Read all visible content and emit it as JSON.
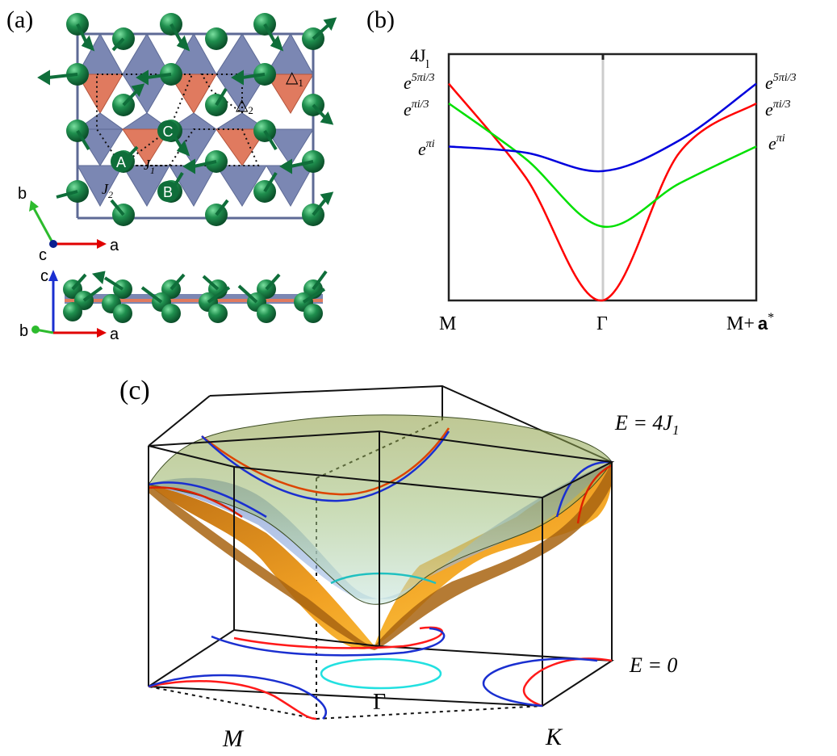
{
  "panel_a": {
    "label": "(a)",
    "site_a": "A",
    "site_b": "B",
    "site_c": "C",
    "j1_main": "J",
    "j1_sub": "1",
    "j2_main": "J",
    "j2_sub": "2",
    "tri1_main": "△",
    "tri1_sub": "1",
    "tri2_main": "△",
    "tri2_sub": "2",
    "axis_top": {
      "b": "b",
      "c": "c",
      "a": "a"
    },
    "axis_side": {
      "c": "c",
      "b": "b",
      "a": "a"
    },
    "colors": {
      "atom": "#1f8f4e",
      "blue_triangle": "#7b87b3",
      "orange_triangle": "#e07a5f"
    }
  },
  "panel_b": {
    "label": "(b)",
    "y_top_main": "4J",
    "y_top_sub": "l",
    "left_labels": {
      "five_pi": {
        "base": "e",
        "exp": "5πi/3"
      },
      "pi_third": {
        "base": "e",
        "exp": "πi/3"
      },
      "pi": {
        "base": "e",
        "exp": "πi"
      }
    },
    "right_labels": {
      "five_pi": {
        "base": "e",
        "exp": "5πi/3"
      },
      "pi_third": {
        "base": "e",
        "exp": "πi/3"
      },
      "pi": {
        "base": "e",
        "exp": "πi"
      }
    },
    "x_ticks": {
      "m": "M",
      "gamma": "Γ",
      "m_plus": "M+",
      "a_star": "a",
      "star": "*"
    }
  },
  "chart_data": {
    "type": "line",
    "title": "",
    "xlabel": "",
    "ylabel": "",
    "x": [
      0,
      0.25,
      0.5,
      0.75,
      1.0
    ],
    "x_tick_labels": [
      "M",
      "Γ",
      "M+ a*"
    ],
    "ylim": [
      0,
      4
    ],
    "series": [
      {
        "name": "e^{5πi/3}",
        "color": "#ff0000",
        "values": [
          3.52,
          2.0,
          0.0,
          2.4,
          3.2
        ]
      },
      {
        "name": "e^{πi/3}",
        "color": "#00e000",
        "values": [
          3.2,
          2.3,
          1.2,
          1.9,
          2.5
        ]
      },
      {
        "name": "e^{πi}",
        "color": "#0000dd",
        "values": [
          2.5,
          2.4,
          2.1,
          2.6,
          3.52
        ]
      }
    ]
  },
  "panel_c": {
    "label": "(c)",
    "e_top": "E = 4J",
    "e_top_sub": "1",
    "e_zero": "E = 0",
    "point_m": "M",
    "point_gamma": "Γ",
    "point_k": "K"
  }
}
